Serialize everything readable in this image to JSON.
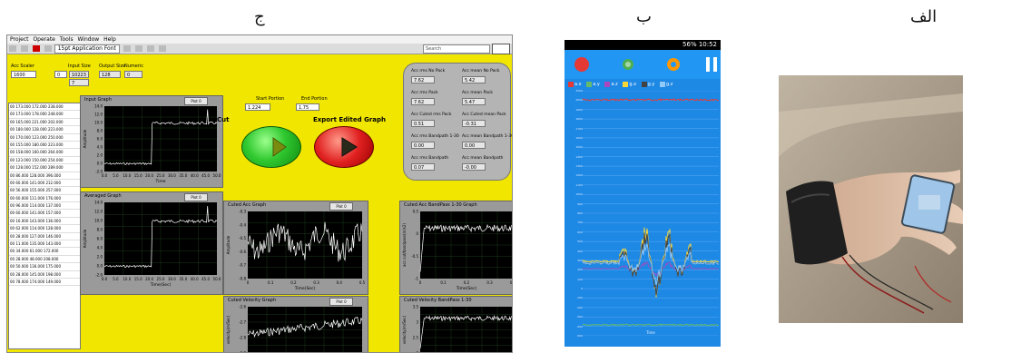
{
  "captions": {
    "a": "الف",
    "b": "ب",
    "c": "ج"
  },
  "labview": {
    "menu": [
      "Project",
      "Operate",
      "Tools",
      "Window",
      "Help"
    ],
    "font_selector": "15pt Application Font",
    "search_placeholder": "Search",
    "acc_scaler": {
      "label": "Acc Scaler",
      "value": "1600"
    },
    "input_size": {
      "label": "Input Size",
      "value": "0",
      "value2": "10223",
      "value3": "7"
    },
    "output_size": {
      "label": "Output Size",
      "value": "128"
    },
    "numeric": {
      "label": "Numeric",
      "value": "0"
    },
    "table_rows": [
      "00 | 173.000 | 172.000 | 238.000",
      "00 | 173.000 | 178.000 | 248.000",
      "00 | 165.000 | 221.000 | 202.000",
      "00 | 180.000 | 128.000 | 223.000",
      "00 | 170.000 | 123.000 | 250.000",
      "00 | 155.000 | 180.000 | 223.000",
      "00 | 158.000 | 160.000 | 264.000",
      "00 | 123.000 | 150.000 | 254.000",
      "00 | 128.000 | 152.000 | 289.000",
      "00 | 86.000 | 128.000 | 396.000",
      "00 | 60.000 | 141.000 | 212.000",
      "00 | 56.000 | 155.000 | 257.000",
      "00 | 60.000 | 111.000 | 176.000",
      "00 | 96.000 | 114.000 | 137.000",
      "00 | 60.000 | 141.000 | 157.000",
      "00 | 16.000 | 143.000 | 136.000",
      "00 | 62.000 | 114.000 | 128.000",
      "00 | 28.000 | 127.000 | 146.000",
      "00 | 11.000 | 135.000 | 143.000",
      "00 | 34.000 | 61.000 | 172.000",
      "00 | 28.000 | 48.000 | 208.000",
      "00 | 50.000 | 136.000 | 175.000",
      "00 | 28.000 | 145.000 | 198.000",
      "00 | 78.000 | 174.000 | 149.000"
    ],
    "input_graph": {
      "title": "Input Graph",
      "legend": "Plot 0",
      "ylabel": "Amplitude",
      "xlabel": "Time",
      "yticks": [
        "14.0",
        "12.0",
        "10.0",
        "8.0",
        "6.0",
        "4.0",
        "2.0",
        "0.0",
        "-2.0"
      ],
      "xticks": [
        "0.0",
        "5.0",
        "10.0",
        "15.0",
        "20.0",
        "25.0",
        "30.0",
        "35.0",
        "40.0",
        "45.0",
        "50.0"
      ]
    },
    "averaged_graph": {
      "title": "Averaged Graph",
      "legend": "Plot 0",
      "ylabel": "Amplitude",
      "xlabel": "Time(Sec)",
      "yticks": [
        "14.0",
        "12.0",
        "10.0",
        "8.0",
        "6.0",
        "4.0",
        "2.0",
        "0.0",
        "-2.0"
      ],
      "xticks": [
        "0.0",
        "5.0",
        "10.0",
        "15.0",
        "20.0",
        "25.0",
        "30.0",
        "35.0",
        "40.0",
        "45.0",
        "50.0"
      ]
    },
    "start_portion": {
      "label": "Start Portion",
      "value": "1.224"
    },
    "end_portion": {
      "label": "End Portion",
      "value": "1.75"
    },
    "cut_label": "Cut",
    "export_label": "Export Edited Graph",
    "stats": [
      {
        "label": "Acc rms No Pack",
        "value": "7.62"
      },
      {
        "label": "Acc mean No Pack",
        "value": "5.42"
      },
      {
        "label": "Acc rms Pack",
        "value": "7.62"
      },
      {
        "label": "Acc mean Pack",
        "value": "5.47"
      },
      {
        "label": "Acc Cuted rms Pack",
        "value": "0.51"
      },
      {
        "label": "Acc Cuted mean Pack",
        "value": "-0.31"
      },
      {
        "label": "Acc rms Bandpath 1-30",
        "value": "0.00"
      },
      {
        "label": "Acc mean Bandpath 1-30",
        "value": "0.00"
      },
      {
        "label": "Acc rms Bandpath",
        "value": "0.07"
      },
      {
        "label": "Acc mean Bandpath",
        "value": "-0.00"
      }
    ],
    "cuted_acc_graph": {
      "title": "Cuted Acc Graph",
      "legend": "Plot 0",
      "ylabel": "Amplitude",
      "xlabel": "Time(Sec)",
      "yticks": [
        "-0.3",
        "-0.4",
        "-0.5",
        "-0.6",
        "-0.7",
        "-0.8"
      ],
      "xticks": [
        "0",
        "0.1",
        "0.2",
        "0.3",
        "0.4",
        "0.5"
      ]
    },
    "cuted_acc_bp_graph": {
      "title": "Cuted Acc BandPass 1-30 Graph",
      "ylabel": "acc cut/bandpass(m/s2)",
      "xlabel": "Time(Sec)",
      "yticks": [
        "0.5",
        "0",
        "-0.5",
        "-1"
      ],
      "xticks": [
        "0",
        "0.1",
        "0.2",
        "0.3",
        "0.4"
      ]
    },
    "cuted_velocity_graph": {
      "title": "Cuted Velocity Graph",
      "legend": "Plot 0",
      "ylabel": "velocity(m/Sec)",
      "yticks": [
        "-2.6",
        "-2.7",
        "-2.8",
        "-2.9"
      ]
    },
    "cuted_velocity_bp_graph": {
      "title": "Cuted Velocity BandPass 1-30",
      "ylabel": "velocity(m/Sec)",
      "yticks": [
        "3.5",
        "3",
        "2.5",
        "2"
      ]
    }
  },
  "app": {
    "status_text": "56% 10:52",
    "legend_items": [
      "a.x",
      "a.y",
      "a.z",
      "g.x",
      "g.y",
      "g.z"
    ],
    "legend_colors": [
      "#e53935",
      "#66bb6a",
      "#ab47bc",
      "#fdd835",
      "#424242",
      "#90caf9"
    ],
    "yticks": [
      "2500",
      "2000",
      "1900",
      "1800",
      "1700",
      "1600",
      "1500",
      "1400",
      "1300",
      "1200",
      "1100",
      "1000",
      "900",
      "800",
      "700",
      "600",
      "500",
      "400",
      "300",
      "200",
      "100",
      "0",
      "-100",
      "-200",
      "-300",
      "-400",
      "-500"
    ],
    "ylabel": "Accel Raw data",
    "xlabel": "Time"
  }
}
